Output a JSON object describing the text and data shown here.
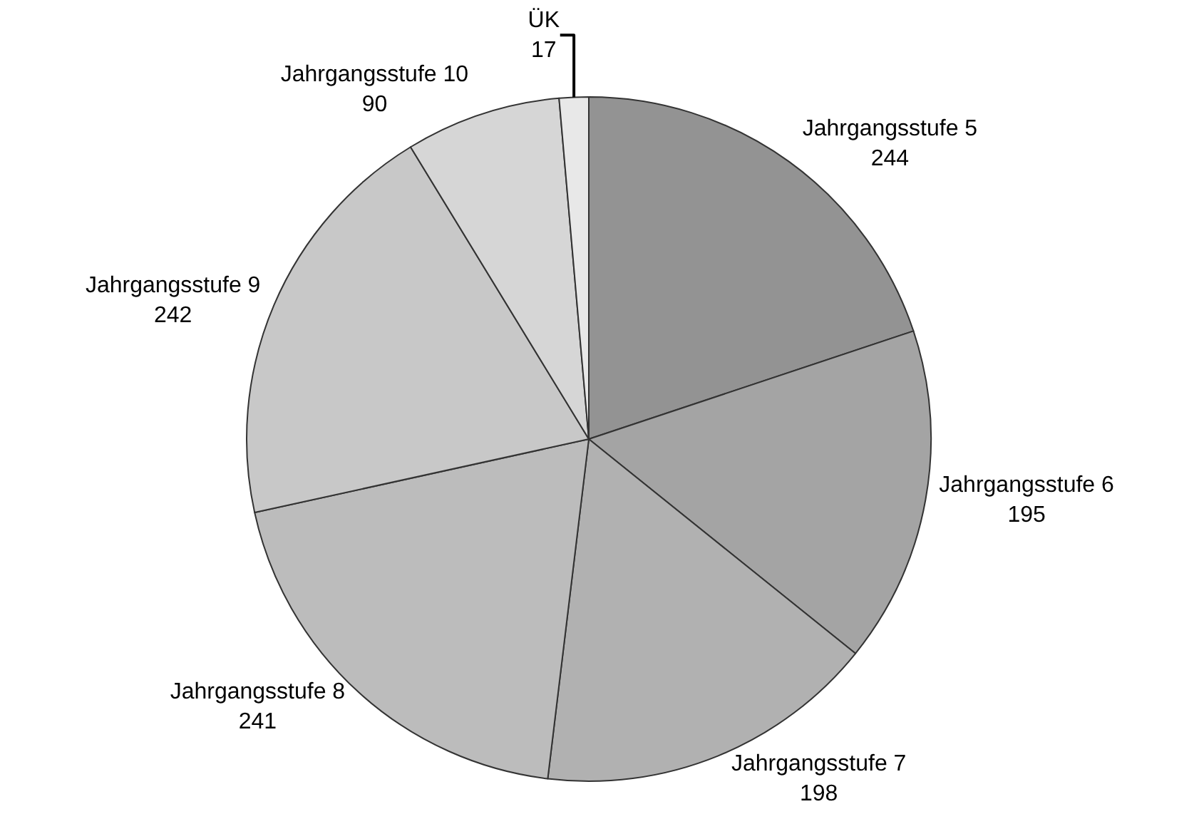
{
  "chart_data": {
    "type": "pie",
    "categories": [
      "Jahrgangsstufe 5",
      "Jahrgangsstufe 6",
      "Jahrgangsstufe 7",
      "Jahrgangsstufe 8",
      "Jahrgangsstufe 9",
      "Jahrgangsstufe 10",
      "ÜK"
    ],
    "values": [
      244,
      195,
      198,
      241,
      242,
      90,
      17
    ],
    "colors": [
      "#939393",
      "#a4a4a4",
      "#b1b1b1",
      "#bcbcbc",
      "#c8c8c8",
      "#d6d6d6",
      "#e8e8e8"
    ],
    "data_labels": true,
    "legend": false
  }
}
